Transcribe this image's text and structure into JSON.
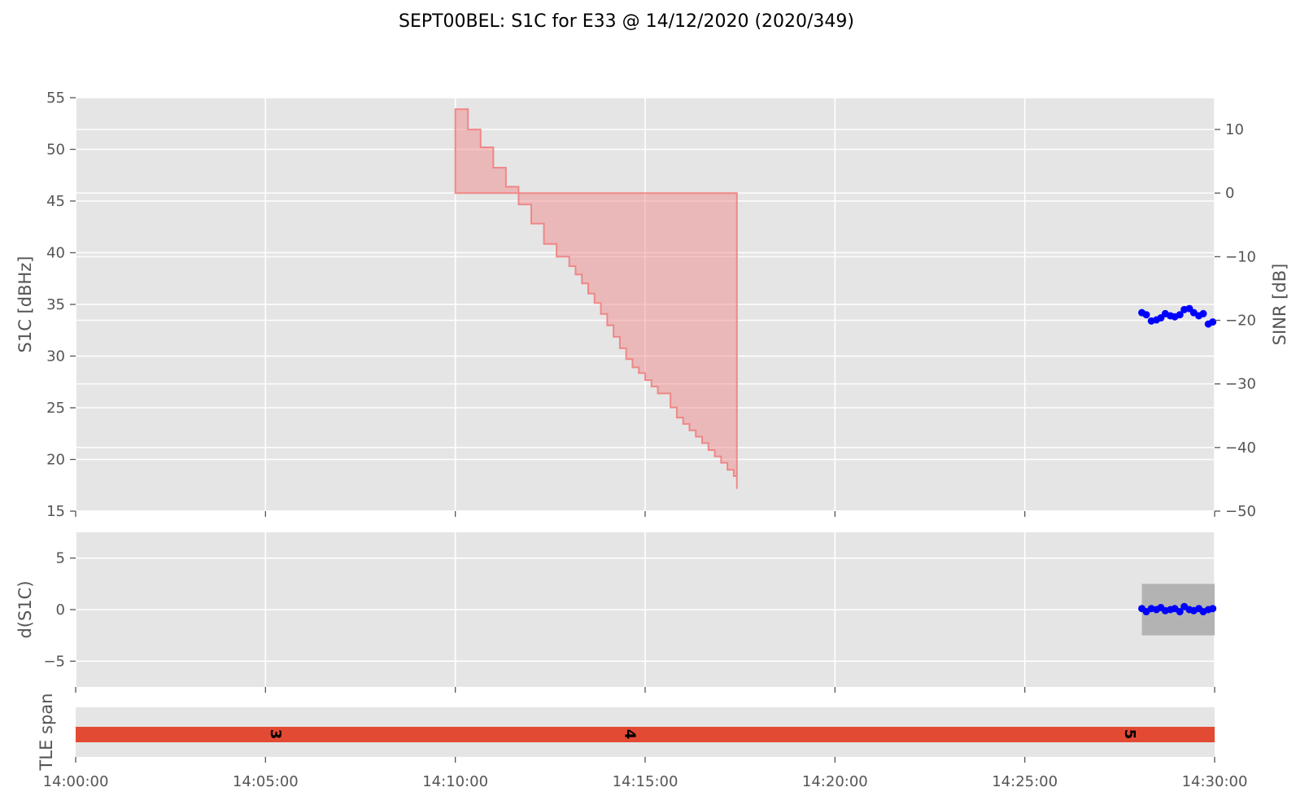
{
  "chart_data": [
    {
      "type": "area",
      "panel": "s1c",
      "title": "SEPT00BEL: S1C for E33 @ 14/12/2020 (2020/349)",
      "ylabel": "S1C [dBHz]",
      "y2label": "SINR [dB]",
      "ylim": [
        15,
        55
      ],
      "y2lim": [
        -50,
        15
      ],
      "yticks": [
        "15",
        "20",
        "25",
        "30",
        "35",
        "40",
        "45",
        "50",
        "55"
      ],
      "y2ticks": [
        "−50",
        "−40",
        "−30",
        "−20",
        "−10",
        "0",
        "10"
      ],
      "xlim": [
        "14:00:00",
        "14:30:00"
      ],
      "xticks": [
        "14:00:00",
        "14:05:00",
        "14:10:00",
        "14:15:00",
        "14:20:00",
        "14:25:00",
        "14:30:00"
      ],
      "grid": true,
      "series": [
        {
          "type": "step-area",
          "color": "#f08080",
          "axis": "right",
          "baseline": 0,
          "x": [
            "14:10:00",
            "14:10:20",
            "14:10:40",
            "14:11:00",
            "14:11:20",
            "14:11:40",
            "14:12:00",
            "14:12:20",
            "14:12:40",
            "14:13:00",
            "14:13:10",
            "14:13:20",
            "14:13:30",
            "14:13:40",
            "14:13:50",
            "14:14:00",
            "14:14:10",
            "14:14:20",
            "14:14:30",
            "14:14:40",
            "14:14:50",
            "14:15:00",
            "14:15:10",
            "14:15:20",
            "14:15:40",
            "14:15:50",
            "14:16:00",
            "14:16:10",
            "14:16:20",
            "14:16:30",
            "14:16:40",
            "14:16:50",
            "14:17:00",
            "14:17:10",
            "14:17:20"
          ],
          "values": [
            13.2,
            10.0,
            7.2,
            4.0,
            1.0,
            -1.8,
            -4.8,
            -8.0,
            -10.0,
            -11.5,
            -12.8,
            -14.2,
            -15.8,
            -17.3,
            -19.0,
            -20.8,
            -22.6,
            -24.4,
            -26.1,
            -27.4,
            -28.3,
            -29.4,
            -30.4,
            -31.5,
            -33.7,
            -35.3,
            -36.3,
            -37.3,
            -38.3,
            -39.3,
            -40.4,
            -41.4,
            -42.4,
            -43.5,
            -44.5
          ],
          "end": [
            "14:17:25",
            -46.5
          ]
        },
        {
          "type": "scatter",
          "color": "#0000ff",
          "axis": "left",
          "x": [
            "14:28:05",
            "14:28:12",
            "14:28:20",
            "14:28:28",
            "14:28:35",
            "14:28:42",
            "14:28:50",
            "14:28:57",
            "14:29:05",
            "14:29:12",
            "14:29:20",
            "14:29:27",
            "14:29:35",
            "14:29:42",
            "14:29:50",
            "14:29:57"
          ],
          "values": [
            34.2,
            34.0,
            33.4,
            33.5,
            33.7,
            34.1,
            33.9,
            33.8,
            34.0,
            34.5,
            34.6,
            34.2,
            33.9,
            34.1,
            33.1,
            33.3
          ]
        }
      ]
    },
    {
      "type": "scatter",
      "panel": "ds1c",
      "ylabel": "d(S1C)",
      "ylim": [
        -7.5,
        7.5
      ],
      "yticks": [
        "−5",
        "0",
        "5"
      ],
      "grid": true,
      "band": {
        "x": [
          "14:28:05",
          "14:30:00"
        ],
        "y": [
          -2.5,
          2.5
        ],
        "color": "#b3b3b3"
      },
      "series": [
        {
          "color": "#0000ff",
          "x": [
            "14:28:05",
            "14:28:12",
            "14:28:20",
            "14:28:28",
            "14:28:35",
            "14:28:42",
            "14:28:50",
            "14:28:57",
            "14:29:05",
            "14:29:12",
            "14:29:20",
            "14:29:27",
            "14:29:35",
            "14:29:42",
            "14:29:50",
            "14:29:57"
          ],
          "values": [
            0.1,
            -0.2,
            0.1,
            0.0,
            0.2,
            -0.1,
            0.0,
            0.1,
            -0.2,
            0.3,
            0.0,
            -0.1,
            0.1,
            -0.2,
            0.0,
            0.1
          ]
        }
      ]
    },
    {
      "type": "bar",
      "panel": "tle",
      "ylabel": "TLE span",
      "bar": {
        "x": [
          "14:00:00",
          "14:30:00"
        ],
        "color": "#e24a33"
      },
      "labels": [
        {
          "text": "3",
          "x": "14:05:15"
        },
        {
          "text": "4",
          "x": "14:14:35"
        },
        {
          "text": "5",
          "x": "14:27:45"
        }
      ]
    }
  ]
}
